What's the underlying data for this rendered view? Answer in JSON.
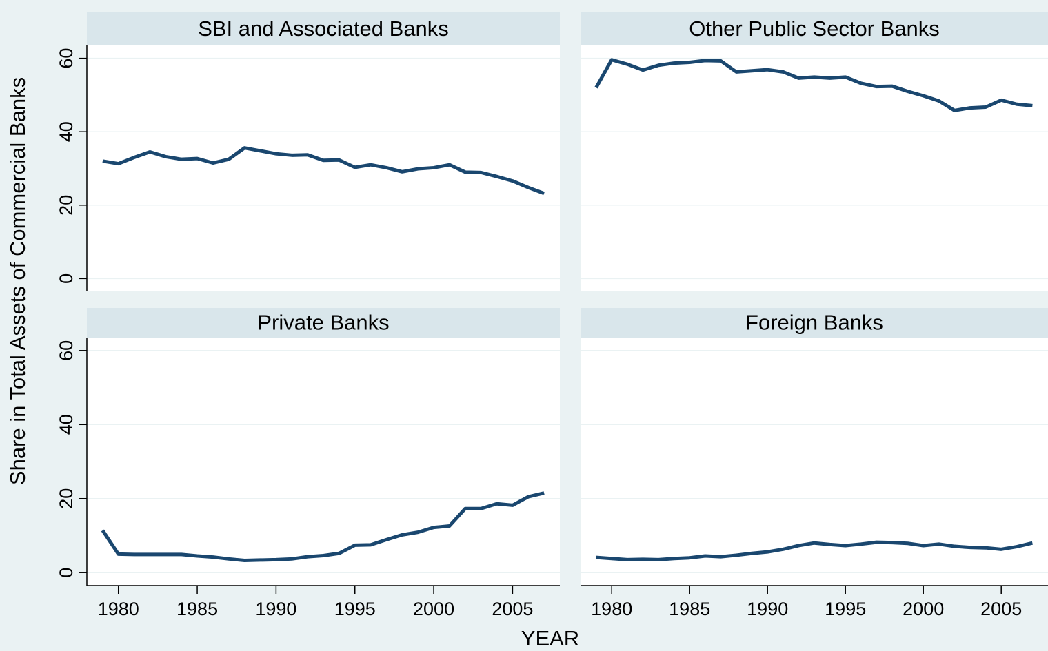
{
  "y_label": "Share in Total Assets of Commercial Banks",
  "x_label": "YEAR",
  "chart_data": [
    {
      "type": "line",
      "title": "SBI and Associated Banks",
      "color": "#1a476f",
      "x": [
        1979,
        1980,
        1981,
        1982,
        1983,
        1984,
        1985,
        1986,
        1987,
        1988,
        1989,
        1990,
        1991,
        1992,
        1993,
        1994,
        1995,
        1996,
        1997,
        1998,
        1999,
        2000,
        2001,
        2002,
        2003,
        2004,
        2005,
        2006,
        2007
      ],
      "values": [
        32,
        31.3,
        33,
        34.5,
        33.2,
        32.5,
        32.7,
        31.5,
        32.5,
        35.6,
        34.8,
        34,
        33.6,
        33.7,
        32.2,
        32.3,
        30.3,
        31,
        30.2,
        29.1,
        29.9,
        30.2,
        31,
        29,
        28.9,
        27.8,
        26.6,
        24.8,
        23.2
      ],
      "xlim": [
        1978,
        2008
      ],
      "ylim": [
        -3.5,
        63.5
      ],
      "yticks": [
        0,
        20,
        40,
        60
      ],
      "grid": true
    },
    {
      "type": "line",
      "title": "Other Public Sector Banks",
      "color": "#1a476f",
      "x": [
        1979,
        1980,
        1981,
        1982,
        1983,
        1984,
        1985,
        1986,
        1987,
        1988,
        1989,
        1990,
        1991,
        1992,
        1993,
        1994,
        1995,
        1996,
        1997,
        1998,
        1999,
        2000,
        2001,
        2002,
        2003,
        2004,
        2005,
        2006,
        2007
      ],
      "values": [
        52,
        59.6,
        58.4,
        56.8,
        58.1,
        58.7,
        58.9,
        59.4,
        59.3,
        56.3,
        56.6,
        56.9,
        56.3,
        54.6,
        54.9,
        54.6,
        54.9,
        53.2,
        52.3,
        52.4,
        51,
        49.8,
        48.4,
        45.8,
        46.5,
        46.7,
        48.6,
        47.5,
        47.1
      ],
      "xlim": [
        1978,
        2008
      ],
      "ylim": [
        -3.5,
        63.5
      ],
      "yticks": [
        0,
        20,
        40,
        60
      ],
      "grid": true
    },
    {
      "type": "line",
      "title": "Private Banks",
      "color": "#1a476f",
      "x": [
        1979,
        1980,
        1981,
        1982,
        1983,
        1984,
        1985,
        1986,
        1987,
        1988,
        1989,
        1990,
        1991,
        1992,
        1993,
        1994,
        1995,
        1996,
        1997,
        1998,
        1999,
        2000,
        2001,
        2002,
        2003,
        2004,
        2005,
        2006,
        2007
      ],
      "values": [
        11.4,
        5,
        4.9,
        4.9,
        4.9,
        4.9,
        4.5,
        4.2,
        3.7,
        3.3,
        3.4,
        3.5,
        3.7,
        4.3,
        4.6,
        5.2,
        7.4,
        7.5,
        8.9,
        10.2,
        10.9,
        12.2,
        12.6,
        17.3,
        17.3,
        18.6,
        18.2,
        20.5,
        21.5
      ],
      "xlim": [
        1978,
        2008
      ],
      "ylim": [
        -3.5,
        63.5
      ],
      "xticks": [
        1980,
        1985,
        1990,
        1995,
        2000,
        2005
      ],
      "yticks": [
        0,
        20,
        40,
        60
      ],
      "grid": true
    },
    {
      "type": "line",
      "title": "Foreign Banks",
      "color": "#1a476f",
      "x": [
        1979,
        1980,
        1981,
        1982,
        1983,
        1984,
        1985,
        1986,
        1987,
        1988,
        1989,
        1990,
        1991,
        1992,
        1993,
        1994,
        1995,
        1996,
        1997,
        1998,
        1999,
        2000,
        2001,
        2002,
        2003,
        2004,
        2005,
        2006,
        2007
      ],
      "values": [
        4.1,
        3.8,
        3.5,
        3.6,
        3.5,
        3.8,
        4,
        4.5,
        4.3,
        4.7,
        5.2,
        5.6,
        6.3,
        7.3,
        8,
        7.6,
        7.3,
        7.7,
        8.2,
        8.1,
        7.9,
        7.3,
        7.7,
        7.1,
        6.8,
        6.7,
        6.3,
        7,
        8
      ],
      "xlim": [
        1978,
        2008
      ],
      "ylim": [
        -3.5,
        63.5
      ],
      "xticks": [
        1980,
        1985,
        1990,
        1995,
        2000,
        2005
      ],
      "yticks": [
        0,
        20,
        40,
        60
      ],
      "grid": true
    }
  ]
}
